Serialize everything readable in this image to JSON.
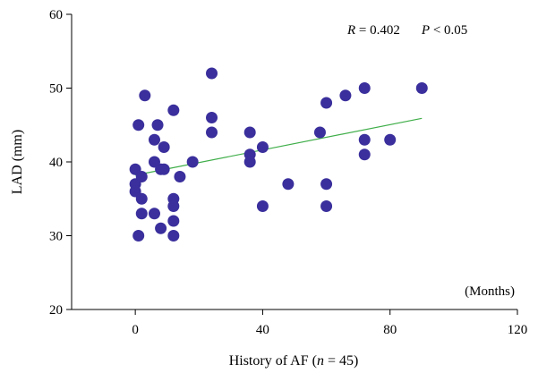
{
  "chart_data": {
    "type": "scatter",
    "xlabel_parts": [
      "History of AF (",
      "n",
      " = 45)"
    ],
    "ylabel": "LAD (mm)",
    "x_unit_note": "(Months)",
    "annotation": {
      "r_symbol": "R",
      "r_value": " = 0.402",
      "p_symbol": "P",
      "p_value": " < 0.05"
    },
    "xlim": [
      -20,
      120
    ],
    "ylim": [
      20,
      60
    ],
    "x_ticks": [
      0,
      40,
      80,
      120
    ],
    "y_ticks": [
      20,
      30,
      40,
      50,
      60
    ],
    "grid": false,
    "colors": {
      "points": "#3a2f9c",
      "trend": "#3fae49",
      "axis": "#000000"
    },
    "trendline": {
      "x": [
        0,
        90
      ],
      "y": [
        38.2,
        45.9
      ]
    },
    "points": [
      {
        "x": 0,
        "y": 39
      },
      {
        "x": 0,
        "y": 37
      },
      {
        "x": 0,
        "y": 36
      },
      {
        "x": 1,
        "y": 45
      },
      {
        "x": 1,
        "y": 30
      },
      {
        "x": 2,
        "y": 38
      },
      {
        "x": 2,
        "y": 35
      },
      {
        "x": 2,
        "y": 33
      },
      {
        "x": 3,
        "y": 49
      },
      {
        "x": 6,
        "y": 43
      },
      {
        "x": 6,
        "y": 40
      },
      {
        "x": 6,
        "y": 33
      },
      {
        "x": 7,
        "y": 45
      },
      {
        "x": 8,
        "y": 39
      },
      {
        "x": 8,
        "y": 31
      },
      {
        "x": 9,
        "y": 42
      },
      {
        "x": 9,
        "y": 39
      },
      {
        "x": 12,
        "y": 47
      },
      {
        "x": 12,
        "y": 35
      },
      {
        "x": 12,
        "y": 34
      },
      {
        "x": 12,
        "y": 32
      },
      {
        "x": 12,
        "y": 30
      },
      {
        "x": 14,
        "y": 38
      },
      {
        "x": 18,
        "y": 40
      },
      {
        "x": 24,
        "y": 52
      },
      {
        "x": 24,
        "y": 46
      },
      {
        "x": 24,
        "y": 44
      },
      {
        "x": 36,
        "y": 44
      },
      {
        "x": 36,
        "y": 41
      },
      {
        "x": 36,
        "y": 40
      },
      {
        "x": 40,
        "y": 42
      },
      {
        "x": 40,
        "y": 34
      },
      {
        "x": 48,
        "y": 37
      },
      {
        "x": 58,
        "y": 44
      },
      {
        "x": 60,
        "y": 48
      },
      {
        "x": 60,
        "y": 37
      },
      {
        "x": 60,
        "y": 34
      },
      {
        "x": 66,
        "y": 49
      },
      {
        "x": 72,
        "y": 50
      },
      {
        "x": 72,
        "y": 43
      },
      {
        "x": 72,
        "y": 41
      },
      {
        "x": 80,
        "y": 43
      },
      {
        "x": 90,
        "y": 50
      }
    ]
  }
}
